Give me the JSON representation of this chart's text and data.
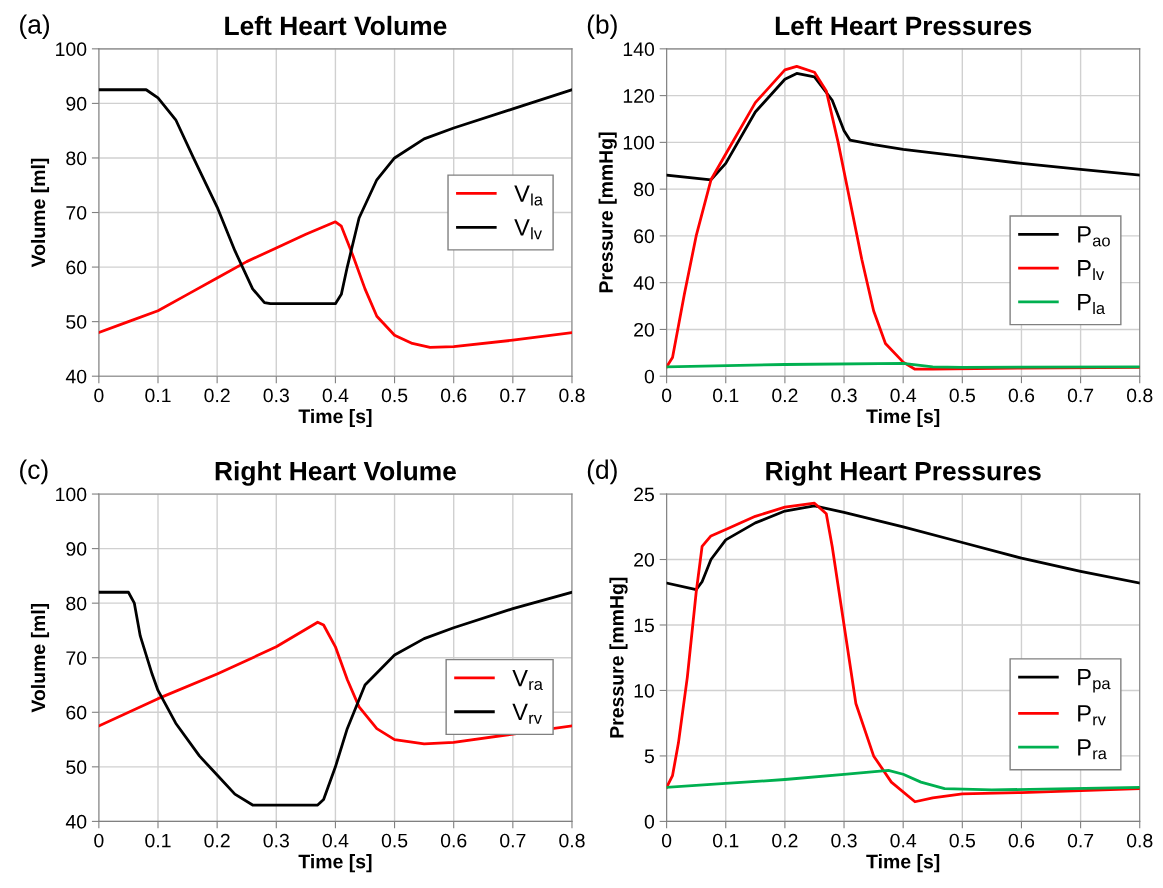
{
  "chart_data": [
    {
      "type": "line",
      "title": "Left Heart Volume",
      "xlabel": "Time [s]",
      "ylabel": "Volume [ml]",
      "annotations": [
        "(a)"
      ],
      "xlim": [
        0,
        0.8
      ],
      "xticks": [
        0,
        0.1,
        0.2,
        0.3,
        0.4,
        0.5,
        0.6,
        0.7,
        0.8
      ],
      "ylim": [
        40,
        100
      ],
      "yticks": [
        40,
        50,
        60,
        70,
        80,
        90,
        100
      ],
      "grid": true,
      "legend": "right",
      "series": [
        {
          "name": "V$_{la}$",
          "color": "#ff0000",
          "x": [
            0,
            0.05,
            0.1,
            0.15,
            0.2,
            0.25,
            0.3,
            0.35,
            0.4,
            0.41,
            0.43,
            0.45,
            0.47,
            0.5,
            0.53,
            0.56,
            0.6,
            0.7,
            0.8
          ],
          "values": [
            48,
            50,
            52,
            55,
            58,
            61,
            63.5,
            66,
            68.3,
            67.5,
            62,
            56,
            51,
            47.5,
            46,
            45.3,
            45.4,
            46.6,
            48
          ]
        },
        {
          "name": "V$_{lv}$",
          "color": "#000000",
          "x": [
            0,
            0.08,
            0.1,
            0.13,
            0.16,
            0.2,
            0.23,
            0.26,
            0.28,
            0.29,
            0.4,
            0.41,
            0.42,
            0.44,
            0.47,
            0.5,
            0.55,
            0.6,
            0.7,
            0.8
          ],
          "values": [
            92.5,
            92.5,
            91,
            87,
            80,
            71,
            63,
            56,
            53.5,
            53.3,
            53.3,
            55,
            60,
            69,
            76,
            80,
            83.5,
            85.5,
            89,
            92.5
          ]
        }
      ]
    },
    {
      "type": "line",
      "title": "Left Heart Pressures",
      "xlabel": "Time [s]",
      "ylabel": "Pressure [mmHg]",
      "annotations": [
        "(b)"
      ],
      "xlim": [
        0,
        0.8
      ],
      "xticks": [
        0,
        0.1,
        0.2,
        0.3,
        0.4,
        0.5,
        0.6,
        0.7,
        0.8
      ],
      "ylim": [
        0,
        140
      ],
      "yticks": [
        0,
        20,
        40,
        60,
        80,
        100,
        120,
        140
      ],
      "grid": true,
      "legend": "lower right",
      "series": [
        {
          "name": "P$_{ao}$",
          "color": "#000000",
          "x": [
            0,
            0.075,
            0.1,
            0.15,
            0.2,
            0.22,
            0.25,
            0.28,
            0.3,
            0.31,
            0.35,
            0.4,
            0.5,
            0.6,
            0.7,
            0.8
          ],
          "values": [
            86,
            84,
            91,
            113,
            127,
            129.5,
            128,
            118,
            105,
            101,
            99,
            97,
            94,
            91,
            88.5,
            86
          ]
        },
        {
          "name": "P$_{lv}$",
          "color": "#ff0000",
          "x": [
            0,
            0.01,
            0.03,
            0.05,
            0.075,
            0.1,
            0.15,
            0.2,
            0.22,
            0.25,
            0.27,
            0.29,
            0.31,
            0.33,
            0.35,
            0.37,
            0.4,
            0.42,
            0.45,
            0.6,
            0.8
          ],
          "values": [
            4,
            8,
            35,
            60,
            84,
            95,
            117,
            131,
            132.5,
            130,
            122,
            100,
            75,
            50,
            28,
            14,
            6,
            3,
            3,
            3.5,
            3.8
          ]
        },
        {
          "name": "P$_{la}$",
          "color": "#00b050",
          "x": [
            0,
            0.2,
            0.4,
            0.45,
            0.5,
            0.8
          ],
          "values": [
            4,
            5,
            5.5,
            4,
            3.8,
            4
          ]
        }
      ]
    },
    {
      "type": "line",
      "title": "Right Heart Volume",
      "xlabel": "Time [s]",
      "ylabel": "Volume [ml]",
      "annotations": [
        "(c)"
      ],
      "xlim": [
        0,
        0.8
      ],
      "xticks": [
        0,
        0.1,
        0.2,
        0.3,
        0.4,
        0.5,
        0.6,
        0.7,
        0.8
      ],
      "ylim": [
        40,
        100
      ],
      "yticks": [
        40,
        50,
        60,
        70,
        80,
        90,
        100
      ],
      "grid": true,
      "legend": "center right",
      "series": [
        {
          "name": "V$_{ra}$",
          "color": "#ff0000",
          "x": [
            0,
            0.1,
            0.2,
            0.3,
            0.37,
            0.38,
            0.4,
            0.42,
            0.44,
            0.47,
            0.5,
            0.55,
            0.6,
            0.7,
            0.8
          ],
          "values": [
            57.5,
            62.5,
            67,
            72,
            76.5,
            76,
            72,
            66,
            61,
            57,
            55,
            54.2,
            54.5,
            56,
            57.5
          ]
        },
        {
          "name": "V$_{rv}$",
          "color": "#000000",
          "x": [
            0,
            0.05,
            0.06,
            0.07,
            0.09,
            0.1,
            0.13,
            0.17,
            0.2,
            0.23,
            0.26,
            0.37,
            0.38,
            0.4,
            0.42,
            0.45,
            0.5,
            0.55,
            0.6,
            0.7,
            0.8
          ],
          "values": [
            82,
            82,
            80,
            74,
            67,
            64,
            58,
            52,
            48.5,
            45,
            43,
            43,
            44,
            50,
            57,
            65,
            70.5,
            73.5,
            75.5,
            79,
            82
          ]
        }
      ]
    },
    {
      "type": "line",
      "title": "Right Heart Pressures",
      "xlabel": "Time [s]",
      "ylabel": "Pressure [mmHg]",
      "annotations": [
        "(d)"
      ],
      "xlim": [
        0,
        0.8
      ],
      "xticks": [
        0,
        0.1,
        0.2,
        0.3,
        0.4,
        0.5,
        0.6,
        0.7,
        0.8
      ],
      "ylim": [
        0,
        25
      ],
      "yticks": [
        0,
        5,
        10,
        15,
        20,
        25
      ],
      "grid": true,
      "legend": "lower right",
      "series": [
        {
          "name": "P$_{pa}$",
          "color": "#000000",
          "x": [
            0,
            0.05,
            0.06,
            0.075,
            0.1,
            0.15,
            0.2,
            0.25,
            0.3,
            0.4,
            0.5,
            0.6,
            0.7,
            0.8
          ],
          "values": [
            18.2,
            17.7,
            18.3,
            20,
            21.5,
            22.8,
            23.7,
            24.1,
            23.6,
            22.5,
            21.3,
            20.1,
            19.1,
            18.2
          ]
        },
        {
          "name": "P$_{rv}$",
          "color": "#ff0000",
          "x": [
            0,
            0.01,
            0.02,
            0.035,
            0.05,
            0.06,
            0.075,
            0.1,
            0.15,
            0.2,
            0.25,
            0.27,
            0.28,
            0.3,
            0.32,
            0.35,
            0.38,
            0.42,
            0.45,
            0.5,
            0.6,
            0.8
          ],
          "values": [
            2.6,
            3.5,
            6,
            11,
            17.5,
            21,
            21.8,
            22.3,
            23.3,
            24,
            24.3,
            23.5,
            21,
            15,
            9,
            5,
            3,
            1.5,
            1.8,
            2.1,
            2.2,
            2.5
          ]
        },
        {
          "name": "P$_{ra}$",
          "color": "#00b050",
          "x": [
            0,
            0.1,
            0.2,
            0.3,
            0.375,
            0.4,
            0.43,
            0.47,
            0.55,
            0.8
          ],
          "values": [
            2.6,
            2.9,
            3.2,
            3.6,
            3.9,
            3.6,
            3,
            2.5,
            2.4,
            2.6
          ]
        }
      ]
    }
  ]
}
